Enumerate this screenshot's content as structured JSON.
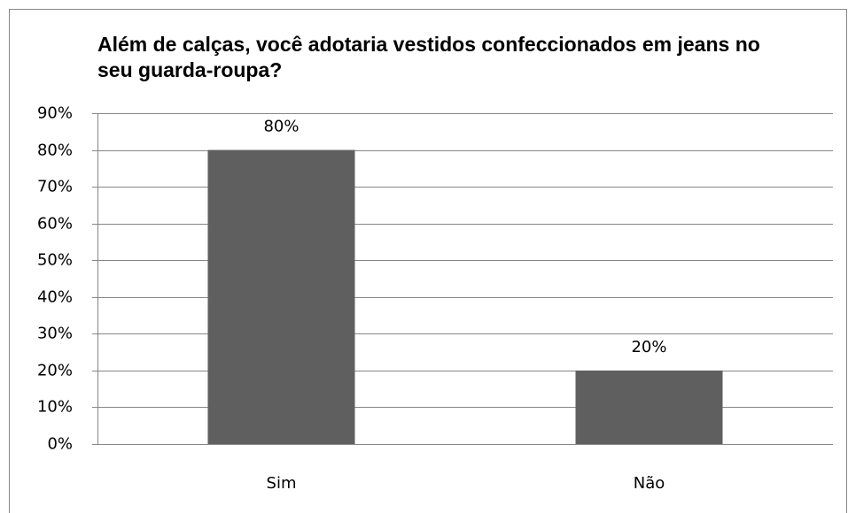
{
  "chart_data": {
    "type": "bar",
    "title": "Além de calças, você adotaria vestidos confeccionados em jeans no seu guarda-roupa?",
    "categories": [
      "Sim",
      "Não"
    ],
    "values": [
      80,
      20
    ],
    "value_labels": [
      "80%",
      "20%"
    ],
    "color": "#5f5f5f",
    "ylim": [
      0,
      90
    ],
    "yticks": [
      {
        "value": 0,
        "label": "0%"
      },
      {
        "value": 10,
        "label": "10%"
      },
      {
        "value": 20,
        "label": "20%"
      },
      {
        "value": 30,
        "label": "30%"
      },
      {
        "value": 40,
        "label": "40%"
      },
      {
        "value": 50,
        "label": "50%"
      },
      {
        "value": 60,
        "label": "60%"
      },
      {
        "value": 70,
        "label": "70%"
      },
      {
        "value": 80,
        "label": "80%"
      },
      {
        "value": 90,
        "label": "90%"
      }
    ],
    "grid": true
  }
}
